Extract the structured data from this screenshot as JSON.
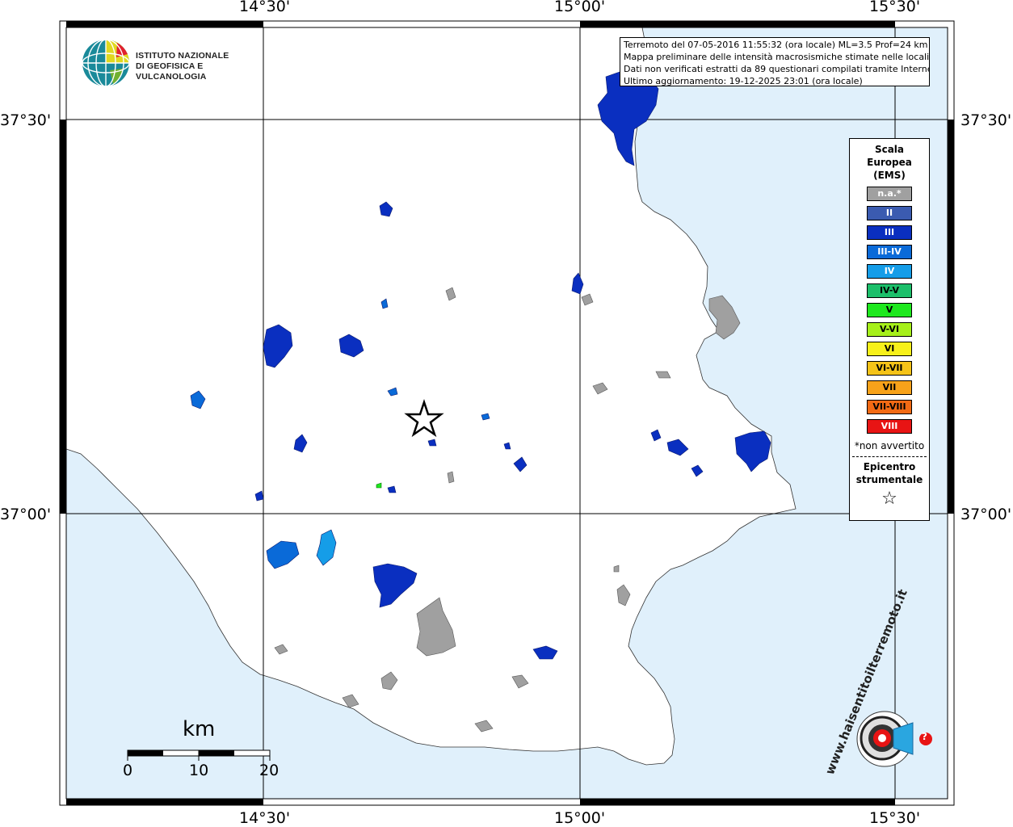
{
  "header": {
    "logo_line1": "ISTITUTO NAZIONALE",
    "logo_line2": "DI GEOFISICA E VULCANOLOGIA",
    "info_lines": [
      "Terremoto del 07-05-2016 11:55:32 (ora locale) ML=3.5 Prof=24 km",
      "Mappa preliminare delle intensità macrosismiche stimate nelle località",
      "Dati non verificati estratti da 89 questionari compilati tramite Internet.",
      "Ultimo aggiornamento: 19-12-2025 23:01 (ora locale)"
    ]
  },
  "axes": {
    "lon_labels": [
      "14°30'",
      "15°00'",
      "15°30'"
    ],
    "lat_labels": [
      "37°30'",
      "37°00'"
    ]
  },
  "legend": {
    "title_lines": [
      "Scala",
      "Europea",
      "(EMS)"
    ],
    "items": [
      {
        "label": "n.a.*",
        "color": "#a0a0a0",
        "text_color": "#ffffff"
      },
      {
        "label": "II",
        "color": "#3b5bb0",
        "text_color": "#ffffff"
      },
      {
        "label": "III",
        "color": "#0a2fc0",
        "text_color": "#ffffff"
      },
      {
        "label": "III-IV",
        "color": "#0a6ad8",
        "text_color": "#ffffff"
      },
      {
        "label": "IV",
        "color": "#159de8",
        "text_color": "#ffffff"
      },
      {
        "label": "IV-V",
        "color": "#1cbf6a",
        "text_color": "#000000"
      },
      {
        "label": "V",
        "color": "#1ee81e",
        "text_color": "#000000"
      },
      {
        "label": "V-VI",
        "color": "#a6f01a",
        "text_color": "#000000"
      },
      {
        "label": "VI",
        "color": "#f7f01a",
        "text_color": "#000000"
      },
      {
        "label": "VI-VII",
        "color": "#f5c318",
        "text_color": "#000000"
      },
      {
        "label": "VII",
        "color": "#f7a21a",
        "text_color": "#000000"
      },
      {
        "label": "VII-VIII",
        "color": "#f26a14",
        "text_color": "#000000"
      },
      {
        "label": "VIII",
        "color": "#e81414",
        "text_color": "#ffffff"
      }
    ],
    "note": "*non avvertito",
    "epicenter_lines": [
      "Epicentro",
      "strumentale"
    ],
    "star": "☆"
  },
  "scalebar": {
    "unit": "km",
    "ticks": [
      "0",
      "10",
      "20"
    ]
  },
  "footer_logo": {
    "text": "www.haisentitoilterremoto.it",
    "question_mark": "?"
  },
  "colors": {
    "sea": "#e0f0fb",
    "land": "#ffffff",
    "not_available": "#a0a0a0",
    "intensity_III": "#0a2fc0",
    "intensity_III_IV": "#0a6ad8",
    "intensity_IV": "#159de8",
    "intensity_V": "#1ee81e"
  },
  "markers": {
    "epicenter": "epicenter-star"
  }
}
